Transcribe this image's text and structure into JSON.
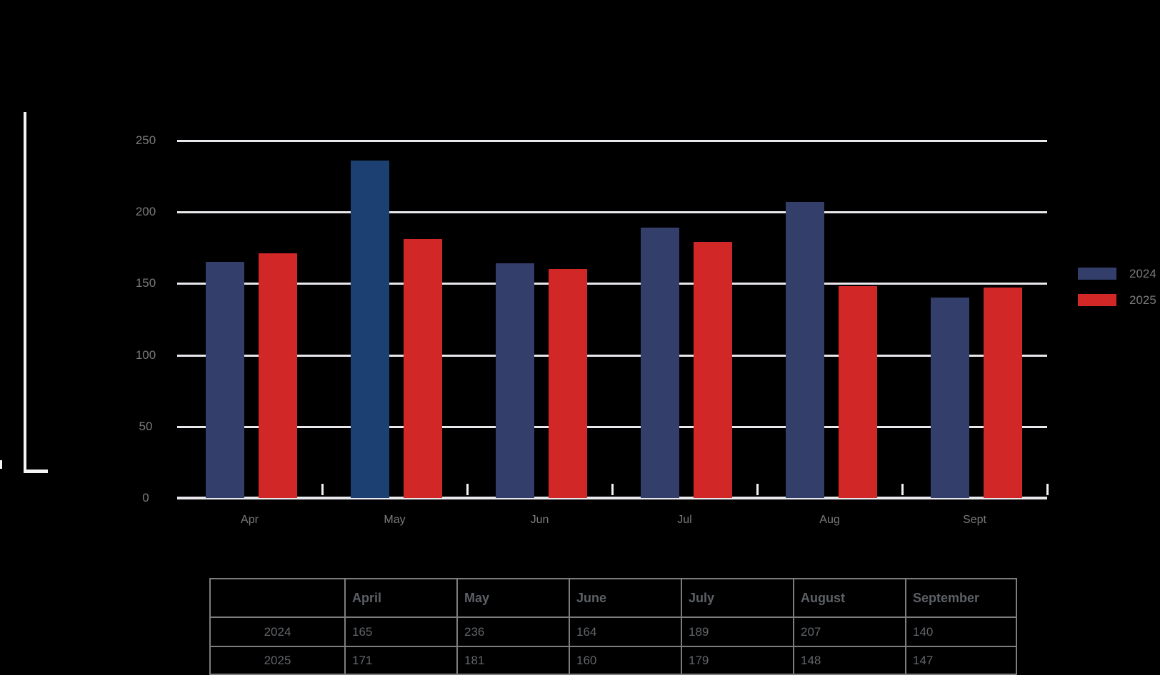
{
  "chart_data": {
    "type": "bar",
    "categories": [
      "Apr",
      "May",
      "Jun",
      "Jul",
      "Aug",
      "Sept"
    ],
    "series": [
      {
        "name": "2024",
        "color": "#333e6b",
        "values": [
          165,
          236,
          164,
          189,
          207,
          140
        ]
      },
      {
        "name": "2025",
        "color": "#d22727",
        "values": [
          171,
          181,
          160,
          179,
          148,
          147
        ]
      }
    ],
    "highlighted_bar": {
      "series": "2024",
      "category": "May",
      "color": "#1b4071"
    },
    "ylim": [
      0,
      250
    ],
    "y_ticks": [
      0,
      50,
      100,
      150,
      200,
      250
    ],
    "grid": "horizontal",
    "legend_position": "right"
  },
  "legend": {
    "items": [
      {
        "label": "2024",
        "color": "#333e6b"
      },
      {
        "label": "2025",
        "color": "#d22727"
      }
    ]
  },
  "table": {
    "headers": [
      "",
      "April",
      "May",
      "June",
      "July",
      "August",
      "September"
    ],
    "rows": [
      {
        "label": "2024",
        "values": [
          "165",
          "236",
          "164",
          "189",
          "207",
          "140"
        ]
      },
      {
        "label": "2025",
        "values": [
          "171",
          "181",
          "160",
          "179",
          "148",
          "147"
        ]
      }
    ]
  },
  "colors": {
    "background": "#000000",
    "bar_2024": "#333e6b",
    "bar_2024_highlight": "#1b4071",
    "bar_2025": "#d22727",
    "gridline": "#e9e9ed",
    "axis_text": "#7a7a7a",
    "table_text": "#616569",
    "table_border": "#7d7d7d",
    "bracket": "#f5f5f5"
  }
}
